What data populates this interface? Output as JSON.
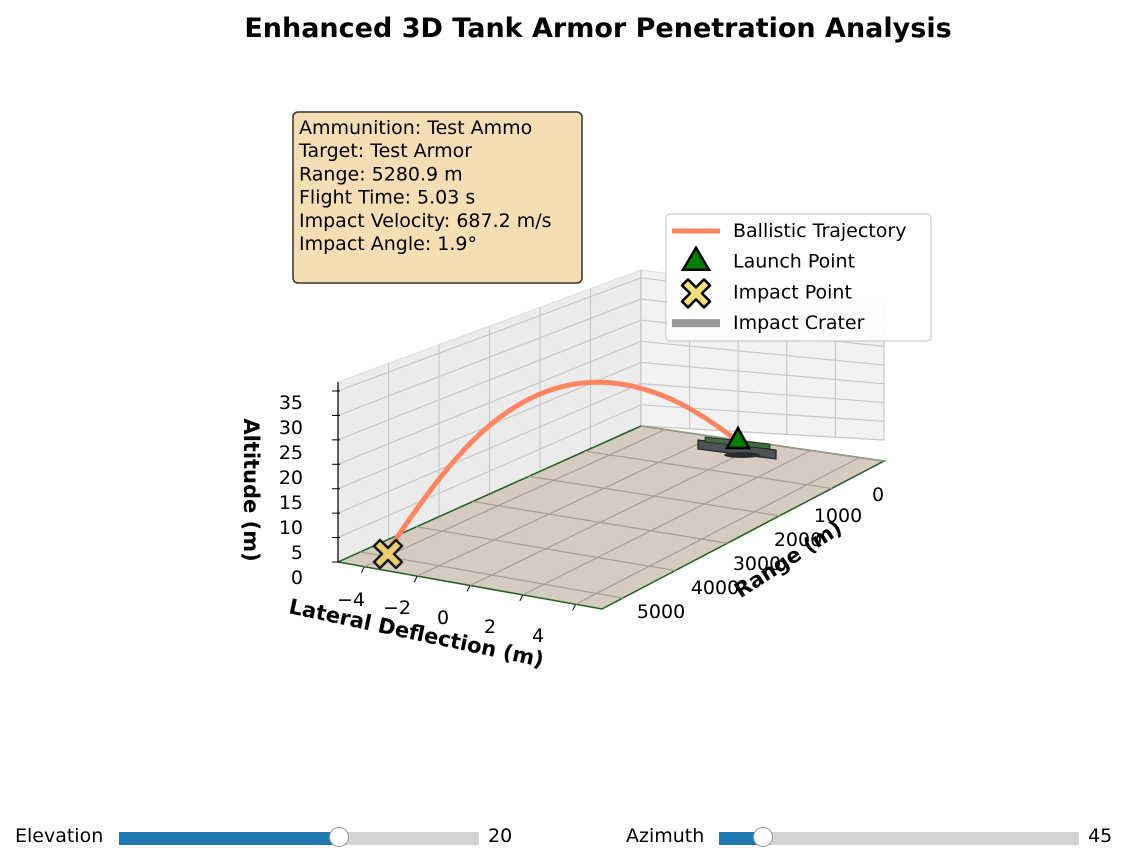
{
  "chart_data": {
    "type": "line",
    "title": "Enhanced 3D Tank Armor Penetration Analysis",
    "xlabel": "Range (m)",
    "ylabel": "Lateral Deflection (m)",
    "zlabel": "Altitude (m)",
    "range_ticks": [
      "0",
      "1000",
      "2000",
      "3000",
      "4000",
      "5000"
    ],
    "lateral_ticks": [
      "−4",
      "−2",
      "0",
      "2",
      "4"
    ],
    "altitude_ticks": [
      "0",
      "5",
      "10",
      "15",
      "20",
      "25",
      "30",
      "35"
    ],
    "xlim": [
      0,
      5400
    ],
    "ylim": [
      -5,
      5
    ],
    "zlim": [
      0,
      37
    ],
    "grid": true,
    "legend_position": "upper-right",
    "legend": [
      {
        "label": "Ballistic Trajectory",
        "kind": "line",
        "color": "#ff8560"
      },
      {
        "label": "Launch Point",
        "kind": "triangle",
        "color": "#008000"
      },
      {
        "label": "Impact Point",
        "kind": "x-marker",
        "color": "#f5e07a"
      },
      {
        "label": "Impact Crater",
        "kind": "line",
        "color": "#999999"
      }
    ],
    "trajectory": {
      "range": [
        0,
        500,
        1000,
        1500,
        2000,
        2500,
        3000,
        3500,
        4000,
        4500,
        5000,
        5280.9
      ],
      "altitude": [
        0,
        6.5,
        12,
        16.2,
        19.2,
        20.8,
        20.9,
        19.4,
        16.1,
        10.9,
        4.2,
        0
      ],
      "lateral": [
        0,
        0,
        0,
        0,
        0,
        0,
        0,
        0,
        0,
        0,
        0,
        0
      ]
    },
    "launch_point": {
      "range": 0,
      "lateral": 0,
      "altitude": 0
    },
    "impact_point": {
      "range": 5280.9,
      "lateral": 0,
      "altitude": 0
    },
    "info_box": [
      "Ammunition: Test Ammo",
      "Target: Test Armor",
      "Range: 5280.9 m",
      "Flight Time: 5.03 s",
      "Impact Velocity: 687.2 m/s",
      "Impact Angle: 1.9°"
    ],
    "colors": {
      "trajectory": "#ff8560",
      "ground": "#d5cbc0",
      "ground_edge": "#1f5f1f",
      "info_box_bg": "#f5deb3",
      "launch": "#008000",
      "impact": "#e8d070"
    }
  },
  "sliders": [
    {
      "label": "Elevation",
      "value": "20",
      "fraction": 0.615
    },
    {
      "label": "Azimuth",
      "value": "45",
      "fraction": 0.125
    }
  ]
}
